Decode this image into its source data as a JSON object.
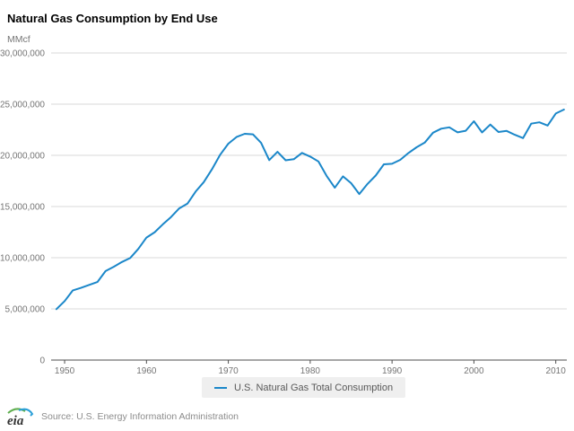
{
  "header": {
    "title": "Natural Gas Consumption by End Use",
    "unit_label": "MMcf"
  },
  "legend": {
    "label": "U.S. Natural Gas Total Consumption"
  },
  "footer": {
    "logo_text": "eia",
    "source": "Source: U.S. Energy Information Administration"
  },
  "colors": {
    "line": "#1b87c9",
    "grid": "#d9d9d9",
    "axis": "#4d4d4d",
    "tick_label": "#757575",
    "legend_bg": "#efefef",
    "legend_text": "#595959",
    "source_text": "#8c8c8c",
    "logo_green": "#5fae4e",
    "logo_blue": "#2a9fd8"
  },
  "chart_data": {
    "type": "line",
    "title": "Natural Gas Consumption by End Use",
    "ylabel": "MMcf",
    "xlabel": "",
    "grid": "horizontal",
    "legend_position": "bottom",
    "xlim": [
      1948.35,
      2011.35
    ],
    "ylim": [
      0,
      30000000
    ],
    "xticks": [
      1950,
      1960,
      1970,
      1980,
      1990,
      2000,
      2010
    ],
    "yticks": [
      0,
      5000000,
      10000000,
      15000000,
      20000000,
      25000000,
      30000000
    ],
    "x": [
      1949,
      1950,
      1951,
      1952,
      1953,
      1954,
      1955,
      1956,
      1957,
      1958,
      1959,
      1960,
      1961,
      1962,
      1963,
      1964,
      1965,
      1966,
      1967,
      1968,
      1969,
      1970,
      1971,
      1972,
      1973,
      1974,
      1975,
      1976,
      1977,
      1978,
      1979,
      1980,
      1981,
      1982,
      1983,
      1984,
      1985,
      1986,
      1987,
      1988,
      1989,
      1990,
      1991,
      1992,
      1993,
      1994,
      1995,
      1996,
      1997,
      1998,
      1999,
      2000,
      2001,
      2002,
      2003,
      2004,
      2005,
      2006,
      2007,
      2008,
      2009,
      2010,
      2011
    ],
    "series": [
      {
        "name": "U.S. Natural Gas Total Consumption",
        "color": "#1b87c9",
        "values": [
          4971000,
          5767000,
          6810000,
          7049000,
          7344000,
          7622000,
          8694000,
          9114000,
          9577000,
          9965000,
          10858000,
          11967000,
          12489000,
          13267000,
          13971000,
          14813000,
          15280000,
          16453000,
          17389000,
          18630000,
          20062000,
          21139000,
          21793000,
          22101000,
          22049000,
          21223000,
          19538000,
          20345000,
          19521000,
          19627000,
          20241000,
          19877000,
          19404000,
          18001000,
          16835000,
          17951000,
          17281000,
          16221000,
          17211000,
          18030000,
          19119000,
          19174000,
          19562000,
          20228000,
          20790000,
          21247000,
          22207000,
          22609000,
          22737000,
          22246000,
          22405000,
          23333000,
          22239000,
          23007000,
          22277000,
          22389000,
          22011000,
          21685000,
          23097000,
          23227000,
          22910000,
          24087000,
          24477000
        ]
      }
    ]
  }
}
